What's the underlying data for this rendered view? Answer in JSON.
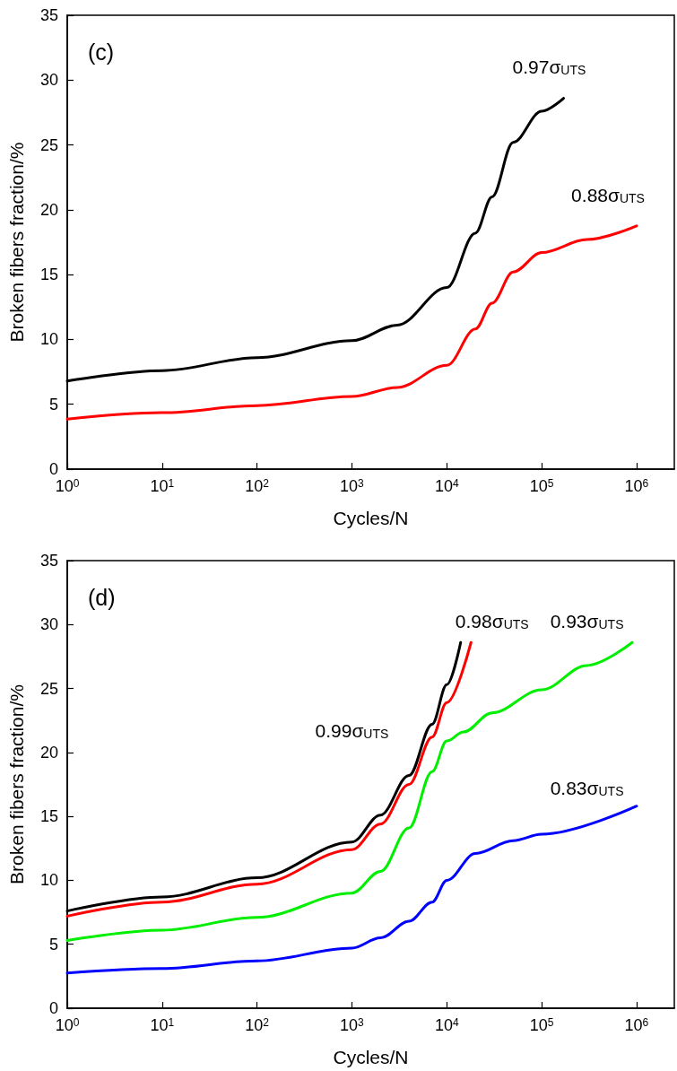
{
  "chart_data": [
    {
      "type": "line",
      "title": "(c)",
      "xlabel": "Cycles/N",
      "ylabel": "Broken fibers fraction/%",
      "log": "x",
      "grid": false,
      "marker": "none",
      "line_style": "solid",
      "xlim": [
        1,
        2500000
      ],
      "xticks": [
        {
          "value": 1,
          "label": "10$^{0}$"
        },
        {
          "value": 10,
          "label": "10$^{1}$"
        },
        {
          "value": 100,
          "label": "10$^{2}$"
        },
        {
          "value": 1000,
          "label": "10$^{3}$"
        },
        {
          "value": 10000,
          "label": "10$^{4}$"
        },
        {
          "value": 100000,
          "label": "10$^{5}$"
        },
        {
          "value": 1000000,
          "label": "10$^{6}$"
        }
      ],
      "ylim": [
        0,
        35
      ],
      "yticks": [
        0,
        5,
        10,
        15,
        20,
        25,
        30,
        35
      ],
      "series": [
        {
          "color": "#000000",
          "x": [
            1,
            10,
            100,
            1000,
            3000,
            10000,
            20000,
            30000,
            50000,
            100000,
            170000
          ],
          "values": [
            6.8,
            7.6,
            8.6,
            9.9,
            11.1,
            14.0,
            18.2,
            21.0,
            25.2,
            27.6,
            28.6
          ]
        },
        {
          "color": "#ff0000",
          "x": [
            1,
            10,
            100,
            1000,
            3000,
            10000,
            20000,
            30000,
            50000,
            100000,
            300000,
            1000000
          ],
          "values": [
            3.85,
            4.35,
            4.9,
            5.6,
            6.3,
            8.0,
            10.8,
            12.8,
            15.2,
            16.7,
            17.7,
            18.75
          ]
        }
      ],
      "annotations": [
        "0.97σ$_{UTS}$",
        "0.88σ$_{UTS}$"
      ]
    },
    {
      "type": "line",
      "title": "(d)",
      "xlabel": "Cycles/N",
      "ylabel": "Broken fibers fraction/%",
      "log": "x",
      "grid": false,
      "marker": "none",
      "line_style": "solid",
      "xlim": [
        1,
        2500000
      ],
      "xticks": [
        {
          "value": 1,
          "label": "10$^{0}$"
        },
        {
          "value": 10,
          "label": "10$^{1}$"
        },
        {
          "value": 100,
          "label": "10$^{2}$"
        },
        {
          "value": 1000,
          "label": "10$^{3}$"
        },
        {
          "value": 10000,
          "label": "10$^{4}$"
        },
        {
          "value": 100000,
          "label": "10$^{5}$"
        },
        {
          "value": 1000000,
          "label": "10$^{6}$"
        }
      ],
      "ylim": [
        0,
        35
      ],
      "yticks": [
        0,
        5,
        10,
        15,
        20,
        25,
        30,
        35
      ],
      "series": [
        {
          "color": "#000000",
          "x": [
            1,
            10,
            100,
            1000,
            2000,
            4000,
            7000,
            10000,
            14000
          ],
          "values": [
            7.6,
            8.7,
            10.2,
            13.0,
            15.1,
            18.2,
            22.2,
            25.3,
            28.6
          ]
        },
        {
          "color": "#ff0000",
          "x": [
            1,
            10,
            100,
            1000,
            2000,
            4000,
            7000,
            10000,
            18000
          ],
          "values": [
            7.2,
            8.3,
            9.7,
            12.4,
            14.4,
            17.5,
            21.2,
            23.9,
            28.6
          ]
        },
        {
          "color": "#00ee00",
          "x": [
            1,
            10,
            100,
            1000,
            2000,
            4000,
            7000,
            10000,
            15000,
            30000,
            100000,
            300000,
            900000
          ],
          "values": [
            5.3,
            6.1,
            7.1,
            9.0,
            10.7,
            14.1,
            18.5,
            20.9,
            21.6,
            23.1,
            24.9,
            26.8,
            28.6
          ]
        },
        {
          "color": "#0000ff",
          "x": [
            1,
            10,
            100,
            1000,
            2000,
            4000,
            7000,
            10000,
            20000,
            50000,
            100000,
            1000000
          ],
          "values": [
            2.75,
            3.1,
            3.7,
            4.7,
            5.5,
            6.8,
            8.3,
            10.0,
            12.1,
            13.1,
            13.6,
            15.8
          ]
        }
      ],
      "annotations": [
        "0.99σ$_{UTS}$",
        "0.98σ$_{UTS}$",
        "0.93σ$_{UTS}$",
        "0.83σ$_{UTS}$"
      ]
    }
  ]
}
